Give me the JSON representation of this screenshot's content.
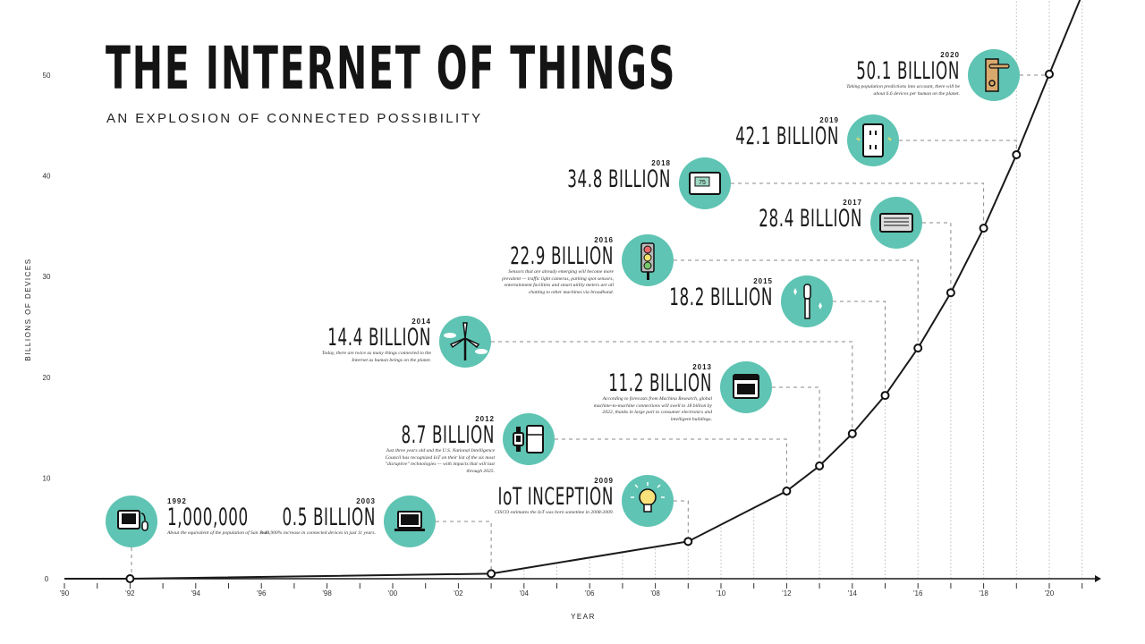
{
  "title": "THE INTERNET OF THINGS",
  "subtitle": "AN EXPLOSION OF CONNECTED POSSIBILITY",
  "chart_data": {
    "type": "line",
    "xlabel": "YEAR",
    "ylabel": "BILLIONS OF DEVICES",
    "xlim": [
      1990,
      2021
    ],
    "ylim": [
      0,
      55
    ],
    "x_ticks": [
      "'90",
      "'92",
      "'94",
      "'96",
      "'98",
      "'00",
      "'02",
      "'04",
      "'06",
      "'08",
      "'10",
      "'12",
      "'14",
      "'16",
      "'18",
      "'20"
    ],
    "y_ticks": [
      "0",
      "10",
      "20",
      "30",
      "40",
      "50"
    ],
    "grid": false,
    "line_color": "#1a1a1a",
    "accent_color": "#5fc4b3",
    "points": [
      {
        "year": 1990,
        "value": 0
      },
      {
        "year": 1992,
        "value": 0.001
      },
      {
        "year": 2003,
        "value": 0.5
      },
      {
        "year": 2009,
        "value": 3.7
      },
      {
        "year": 2012,
        "value": 8.7
      },
      {
        "year": 2013,
        "value": 11.2
      },
      {
        "year": 2014,
        "value": 14.4
      },
      {
        "year": 2015,
        "value": 18.2
      },
      {
        "year": 2016,
        "value": 22.9
      },
      {
        "year": 2017,
        "value": 28.4
      },
      {
        "year": 2018,
        "value": 34.8
      },
      {
        "year": 2019,
        "value": 42.1
      },
      {
        "year": 2020,
        "value": 50.1
      },
      {
        "year": 2021,
        "value": 58
      }
    ],
    "marked_years": [
      1992,
      2003,
      2009,
      2012,
      2013,
      2014,
      2015,
      2016,
      2017,
      2018,
      2019,
      2020
    ]
  },
  "callouts": [
    {
      "year": "1992",
      "value": "1,000,000",
      "icon": "computer-icon",
      "desc": "About the equivalent of the population of San Jose."
    },
    {
      "year": "2003",
      "value": "0.5 BILLION",
      "icon": "laptop-icon",
      "desc": "A 49,900% increase in connected devices in just 11 years."
    },
    {
      "year": "2009",
      "value": "IoT INCEPTION",
      "icon": "lightbulb-icon",
      "desc": "CISCO estimates the IoT was born sometime in 2008-2009."
    },
    {
      "year": "2012",
      "value": "8.7 BILLION",
      "icon": "watch-fridge-icon",
      "desc": "Just three years old and the U.S. National Intelligence Council has recognized IoT on their list of the six most \"disruptive\" technologies — with impacts that will last through 2025."
    },
    {
      "year": "2013",
      "value": "11.2 BILLION",
      "icon": "oven-icon",
      "desc": "According to forecasts from Machina Research, global machine-to-machine connections will swell to 18 billion by 2022, thanks in large part to consumer electronics and intelligent buildings."
    },
    {
      "year": "2014",
      "value": "14.4 BILLION",
      "icon": "wind-turbine-icon",
      "desc": "Today, there are twice as many things connected to the Internet as human beings on the planet."
    },
    {
      "year": "2015",
      "value": "18.2 BILLION",
      "icon": "toothbrush-icon",
      "desc": ""
    },
    {
      "year": "2016",
      "value": "22.9 BILLION",
      "icon": "traffic-light-icon",
      "desc": "Sensors that are already emerging will become more prevalent — traffic light cameras, parking spot sensors, entertainment facilities and smart utility meters are all chatting to other machines via broadband."
    },
    {
      "year": "2017",
      "value": "28.4 BILLION",
      "icon": "air-conditioner-icon",
      "desc": ""
    },
    {
      "year": "2018",
      "value": "34.8 BILLION",
      "icon": "thermostat-icon",
      "desc": "",
      "thermostat_reading": "75"
    },
    {
      "year": "2019",
      "value": "42.1 BILLION",
      "icon": "power-outlet-icon",
      "desc": ""
    },
    {
      "year": "2020",
      "value": "50.1 BILLION",
      "icon": "door-lock-icon",
      "desc": "Taking population predictions into account, there will be about 6.6 devices per human on the planet."
    }
  ]
}
